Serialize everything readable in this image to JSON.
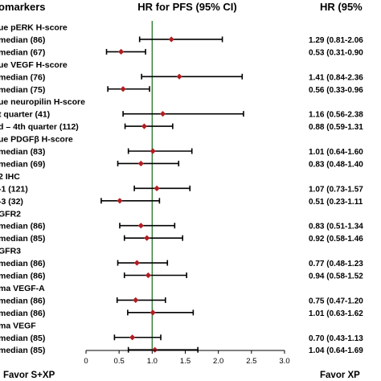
{
  "chart_data": {
    "type": "forest",
    "title": "HR for PFS (95% CI)",
    "left_header": "omarkers",
    "right_header": "HR (95%",
    "xlim": [
      0,
      3.0
    ],
    "reference_line": 1.0,
    "xticks": [
      "0",
      "0.5",
      "1.0",
      "1.5",
      "2.0",
      "2.5",
      "3.0"
    ],
    "xtick_values": [
      0,
      0.5,
      1.0,
      1.5,
      2.0,
      2.5,
      3.0
    ],
    "favor_left": "Favor S+XP",
    "favor_right": "Favor XP",
    "groups": [
      {
        "label": "ue pERK H-score"
      },
      {
        "label": "median (86)",
        "hr": 1.29,
        "lo": 0.81,
        "hi": 2.06,
        "text": "1.29 (0.81-2.06"
      },
      {
        "label": "median (67)",
        "hr": 0.53,
        "lo": 0.31,
        "hi": 0.9,
        "text": "0.53 (0.31-0.90"
      },
      {
        "label": "ue VEGF H-score"
      },
      {
        "label": "median (76)",
        "hr": 1.41,
        "lo": 0.84,
        "hi": 2.36,
        "text": "1.41 (0.84-2.36"
      },
      {
        "label": "median (75)",
        "hr": 0.56,
        "lo": 0.33,
        "hi": 0.96,
        "text": "0.56 (0.33-0.96"
      },
      {
        "label": "ue neuropilin H-score"
      },
      {
        "label": "t quarter (41)",
        "hr": 1.16,
        "lo": 0.56,
        "hi": 2.38,
        "text": "1.16 (0.56-2.38"
      },
      {
        "label": "d – 4th quarter (112)",
        "hr": 0.88,
        "lo": 0.59,
        "hi": 1.31,
        "text": "0.88 (0.59-1.31"
      },
      {
        "label": "ue PDGFβ H-score"
      },
      {
        "label": "median (83)",
        "hr": 1.01,
        "lo": 0.64,
        "hi": 1.6,
        "text": "1.01 (0.64-1.60"
      },
      {
        "label": "median (69)",
        "hr": 0.83,
        "lo": 0.48,
        "hi": 1.4,
        "text": "0.83 (0.48-1.40"
      },
      {
        "label": "2 IHC"
      },
      {
        "label": "-1 (121)",
        "hr": 1.07,
        "lo": 0.73,
        "hi": 1.57,
        "text": "1.07 (0.73-1.57"
      },
      {
        "label": "-3 (32)",
        "hr": 0.51,
        "lo": 0.23,
        "hi": 1.11,
        "text": "0.51 (0.23-1.11"
      },
      {
        "label": "GFR2"
      },
      {
        "label": "median (86)",
        "hr": 0.83,
        "lo": 0.51,
        "hi": 1.34,
        "text": "0.83 (0.51-1.34"
      },
      {
        "label": "median (85)",
        "hr": 0.92,
        "lo": 0.58,
        "hi": 1.46,
        "text": "0.92 (0.58-1.46"
      },
      {
        "label": "GFR3"
      },
      {
        "label": "median (86)",
        "hr": 0.77,
        "lo": 0.48,
        "hi": 1.23,
        "text": "0.77 (0.48-1.23"
      },
      {
        "label": "median (86)",
        "hr": 0.94,
        "lo": 0.58,
        "hi": 1.52,
        "text": "0.94 (0.58-1.52"
      },
      {
        "label": "ma VEGF-A"
      },
      {
        "label": "median (86)",
        "hr": 0.75,
        "lo": 0.47,
        "hi": 1.2,
        "text": "0.75 (0.47-1.20"
      },
      {
        "label": "median (86)",
        "hr": 1.01,
        "lo": 0.63,
        "hi": 1.62,
        "text": "1.01 (0.63-1.62"
      },
      {
        "label": "ma VEGF"
      },
      {
        "label": "median (85)",
        "hr": 0.7,
        "lo": 0.43,
        "hi": 1.13,
        "text": "0.70 (0.43-1.13"
      },
      {
        "label": "median (85)",
        "hr": 1.04,
        "lo": 0.64,
        "hi": 1.69,
        "text": "1.04 (0.64-1.69"
      }
    ],
    "colors": {
      "marker": "#b01e23",
      "reference": "#2e7d32",
      "ci": "#000000"
    }
  }
}
